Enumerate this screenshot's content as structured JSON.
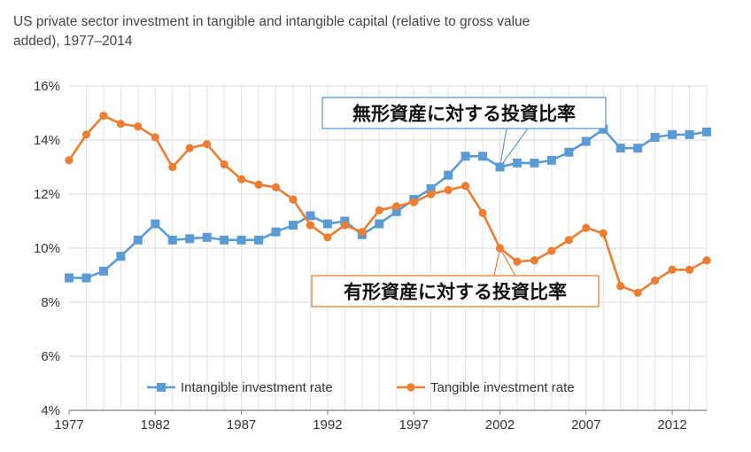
{
  "chart_data": {
    "type": "line",
    "title": [
      "US private sector investment in tangible and intangible capital (relative to gross value",
      "added), 1977–2014"
    ],
    "ylim": [
      4,
      16
    ],
    "yticks": [
      4,
      6,
      8,
      10,
      12,
      14,
      16
    ],
    "ytick_labels": [
      "4%",
      "6%",
      "8%",
      "10%",
      "12%",
      "14%",
      "16%"
    ],
    "xlim": [
      1977,
      2014
    ],
    "xticks": [
      1977,
      1982,
      1987,
      1992,
      1997,
      2002,
      2007,
      2012
    ],
    "xtick_labels": [
      "1977",
      "1982",
      "1987",
      "1992",
      "1997",
      "2002",
      "2007",
      "2012"
    ],
    "grid": true,
    "x": [
      1977,
      1978,
      1979,
      1980,
      1981,
      1982,
      1983,
      1984,
      1985,
      1986,
      1987,
      1988,
      1989,
      1990,
      1991,
      1992,
      1993,
      1994,
      1995,
      1996,
      1997,
      1998,
      1999,
      2000,
      2001,
      2002,
      2003,
      2004,
      2005,
      2006,
      2007,
      2008,
      2009,
      2010,
      2011,
      2012,
      2013,
      2014
    ],
    "series": [
      {
        "name": "Intangible investment rate",
        "color": "#5b9bd5",
        "marker": "square",
        "values": [
          8.9,
          8.9,
          9.15,
          9.7,
          10.3,
          10.9,
          10.3,
          10.35,
          10.4,
          10.3,
          10.3,
          10.3,
          10.6,
          10.85,
          11.2,
          10.9,
          11.0,
          10.5,
          10.9,
          11.35,
          11.8,
          12.2,
          12.7,
          13.4,
          13.4,
          13.0,
          13.15,
          13.15,
          13.25,
          13.55,
          13.95,
          14.4,
          13.7,
          13.7,
          14.1,
          14.2,
          14.2,
          14.3
        ]
      },
      {
        "name": "Tangible investment rate",
        "color": "#ed7d31",
        "marker": "circle",
        "values": [
          13.25,
          14.2,
          14.9,
          14.6,
          14.5,
          14.1,
          13.0,
          13.7,
          13.85,
          13.1,
          12.55,
          12.35,
          12.25,
          11.8,
          10.85,
          10.4,
          10.85,
          10.6,
          11.4,
          11.55,
          11.7,
          12.0,
          12.15,
          12.3,
          11.3,
          10.0,
          9.5,
          9.55,
          9.9,
          10.3,
          10.75,
          10.55,
          8.6,
          8.35,
          8.8,
          9.2,
          9.2,
          9.55
        ]
      }
    ],
    "legend_position": "bottom-center",
    "annotations": [
      {
        "text": "無形資産に対する投資比率",
        "series": 0,
        "point_year": 2002,
        "border_color": "#5b9bd5"
      },
      {
        "text": "有形資産に対する投資比率",
        "series": 1,
        "point_year": 2002,
        "border_color": "#ed7d31"
      }
    ]
  }
}
